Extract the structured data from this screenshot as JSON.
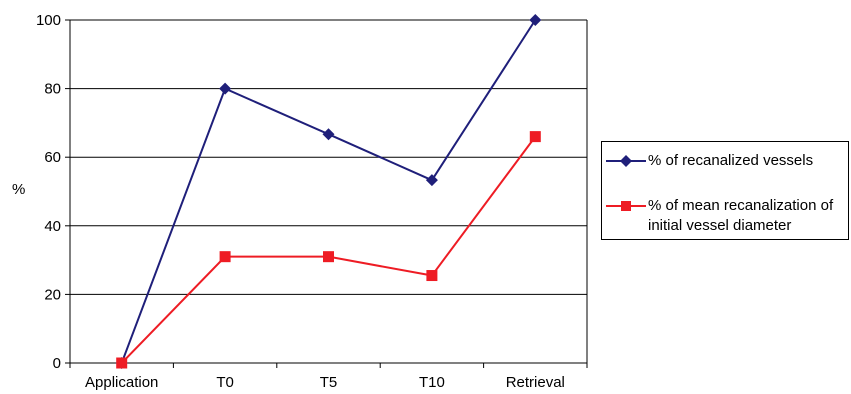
{
  "chart_data": {
    "type": "line",
    "title": "",
    "xlabel": "",
    "ylabel": "%",
    "ylim": [
      0,
      100
    ],
    "yticks": [
      0,
      20,
      40,
      60,
      80,
      100
    ],
    "categories": [
      "Application",
      "T0",
      "T5",
      "T10",
      "Retrieval"
    ],
    "grid": true,
    "legend_position": "right",
    "series": [
      {
        "name": "% of recanalized vessels",
        "color": "#1f1f7a",
        "marker": "diamond",
        "values": [
          0,
          80,
          66.7,
          53.3,
          100
        ]
      },
      {
        "name_line1": "% of mean recanalization of",
        "name_line2": "initial vessel diameter",
        "color": "#ee1c24",
        "marker": "square",
        "values": [
          0,
          31,
          31,
          25.5,
          66
        ]
      }
    ]
  }
}
